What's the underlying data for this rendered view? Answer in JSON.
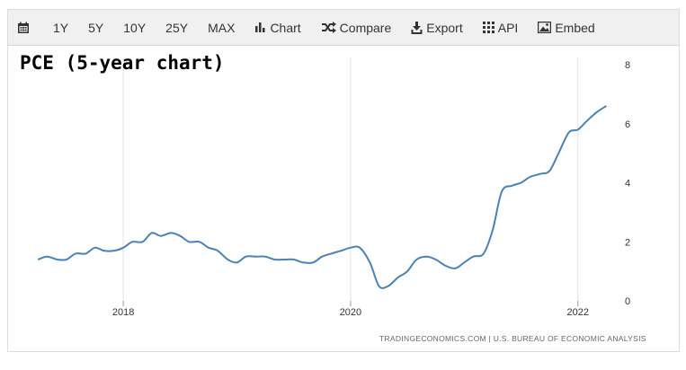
{
  "toolbar": {
    "calendar_icon": "calendar-icon",
    "ranges": [
      "1Y",
      "5Y",
      "10Y",
      "25Y",
      "MAX"
    ],
    "chart_label": "Chart",
    "compare_label": "Compare",
    "export_label": "Export",
    "api_label": "API",
    "embed_label": "Embed"
  },
  "source_text": "TRADINGECONOMICS.COM  |  U.S. BUREAU OF ECONOMIC ANALYSIS",
  "colors": {
    "line": "#4a82b4",
    "grid": "#e3e3e3",
    "toolbar_bg": "#f0f0f0"
  },
  "chart_data": {
    "type": "line",
    "title": "PCE (5-year chart)",
    "xlabel": "",
    "ylabel": "",
    "x_ticks": [
      2018,
      2020,
      2022
    ],
    "y_ticks": [
      0,
      2,
      4,
      6,
      8
    ],
    "ylim": [
      0,
      8
    ],
    "xlim": [
      2017.2,
      2022.35
    ],
    "grid": "vertical",
    "series": [
      {
        "name": "",
        "x": [
          2017.25,
          2017.33,
          2017.42,
          2017.5,
          2017.58,
          2017.67,
          2017.75,
          2017.83,
          2017.92,
          2018.0,
          2018.08,
          2018.17,
          2018.25,
          2018.33,
          2018.42,
          2018.5,
          2018.58,
          2018.67,
          2018.75,
          2018.83,
          2018.92,
          2019.0,
          2019.08,
          2019.17,
          2019.25,
          2019.33,
          2019.42,
          2019.5,
          2019.58,
          2019.67,
          2019.75,
          2019.83,
          2019.92,
          2020.0,
          2020.08,
          2020.17,
          2020.25,
          2020.33,
          2020.42,
          2020.5,
          2020.58,
          2020.67,
          2020.75,
          2020.83,
          2020.92,
          2021.0,
          2021.08,
          2021.17,
          2021.25,
          2021.33,
          2021.42,
          2021.5,
          2021.58,
          2021.67,
          2021.75,
          2021.83,
          2021.92,
          2022.0,
          2022.08,
          2022.17,
          2022.25
        ],
        "values": [
          1.4,
          1.5,
          1.4,
          1.4,
          1.6,
          1.6,
          1.8,
          1.7,
          1.7,
          1.8,
          2.0,
          2.0,
          2.3,
          2.2,
          2.3,
          2.2,
          2.0,
          2.0,
          1.8,
          1.7,
          1.4,
          1.3,
          1.5,
          1.5,
          1.5,
          1.4,
          1.4,
          1.4,
          1.3,
          1.3,
          1.5,
          1.6,
          1.7,
          1.8,
          1.8,
          1.3,
          0.5,
          0.5,
          0.8,
          1.0,
          1.4,
          1.5,
          1.4,
          1.2,
          1.1,
          1.3,
          1.5,
          1.6,
          2.4,
          3.7,
          3.9,
          4.0,
          4.2,
          4.3,
          4.4,
          5.0,
          5.7,
          5.8,
          6.1,
          6.4,
          6.6
        ]
      }
    ]
  }
}
